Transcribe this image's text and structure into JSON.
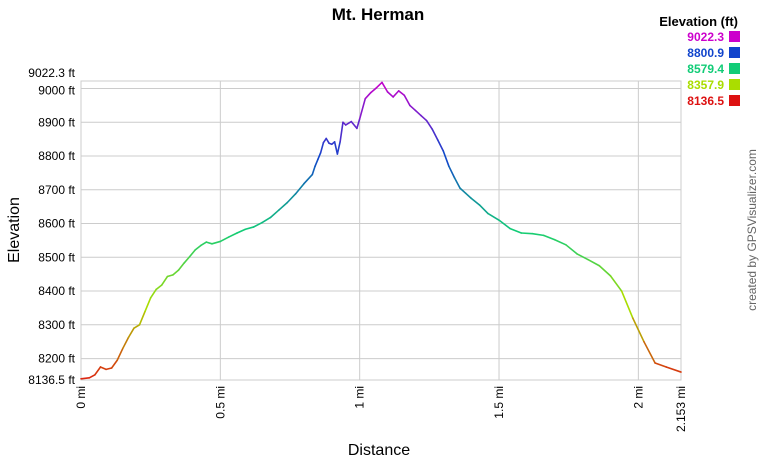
{
  "chart_data": {
    "type": "line",
    "title": "Mt. Herman",
    "xlabel": "Distance",
    "ylabel": "Elevation",
    "xlim": [
      0,
      2.153
    ],
    "ylim": [
      8136.5,
      9022.3
    ],
    "x_ticks": [
      {
        "value": 0,
        "label": "0 mi"
      },
      {
        "value": 0.5,
        "label": "0.5 mi"
      },
      {
        "value": 1,
        "label": "1 mi"
      },
      {
        "value": 1.5,
        "label": "1.5 mi"
      },
      {
        "value": 2,
        "label": "2 mi"
      },
      {
        "value": 2.153,
        "label": "2.153 mi"
      }
    ],
    "y_ticks": [
      {
        "value": 8136.5,
        "label": "8136.5 ft"
      },
      {
        "value": 8200,
        "label": "8200 ft"
      },
      {
        "value": 8300,
        "label": "8300 ft"
      },
      {
        "value": 8400,
        "label": "8400 ft"
      },
      {
        "value": 8500,
        "label": "8500 ft"
      },
      {
        "value": 8600,
        "label": "8600 ft"
      },
      {
        "value": 8700,
        "label": "8700 ft"
      },
      {
        "value": 8800,
        "label": "8800 ft"
      },
      {
        "value": 8900,
        "label": "8900 ft"
      },
      {
        "value": 9000,
        "label": "9000 ft"
      },
      {
        "value": 9022.3,
        "label": "9022.3 ft"
      }
    ],
    "grid": true,
    "legend": {
      "title": "Elevation (ft)",
      "placement": "top-right",
      "entries": [
        {
          "label": "9022.3",
          "color": "#cc00cc"
        },
        {
          "label": "8800.9",
          "color": "#1144cc"
        },
        {
          "label": "8579.4",
          "color": "#11cc77"
        },
        {
          "label": "8357.9",
          "color": "#aadd00"
        },
        {
          "label": "8136.5",
          "color": "#dd1111"
        }
      ]
    },
    "credit": "created by GPSVisualizer.com",
    "series": [
      {
        "x": [
          0,
          0.03,
          0.05,
          0.07,
          0.09,
          0.11,
          0.13,
          0.15,
          0.17,
          0.19,
          0.21,
          0.23,
          0.25,
          0.27,
          0.29,
          0.31,
          0.33,
          0.35,
          0.37,
          0.39,
          0.41,
          0.43,
          0.45,
          0.47,
          0.5,
          0.53,
          0.56,
          0.59,
          0.62,
          0.65,
          0.68,
          0.71,
          0.74,
          0.77,
          0.8,
          0.83,
          0.84,
          0.85,
          0.86,
          0.87,
          0.88,
          0.89,
          0.9,
          0.91,
          0.92,
          0.93,
          0.94,
          0.95,
          0.97,
          0.99,
          1.0,
          1.02,
          1.04,
          1.06,
          1.08,
          1.1,
          1.12,
          1.14,
          1.16,
          1.18,
          1.2,
          1.22,
          1.24,
          1.26,
          1.28,
          1.3,
          1.32,
          1.34,
          1.36,
          1.38,
          1.4,
          1.43,
          1.46,
          1.5,
          1.54,
          1.58,
          1.62,
          1.66,
          1.7,
          1.74,
          1.78,
          1.82,
          1.86,
          1.9,
          1.94,
          1.98,
          2.02,
          2.06,
          2.1,
          2.153
        ],
        "y": [
          8140,
          8143,
          8152,
          8175,
          8168,
          8172,
          8195,
          8230,
          8262,
          8290,
          8300,
          8340,
          8380,
          8405,
          8418,
          8443,
          8448,
          8462,
          8483,
          8502,
          8522,
          8535,
          8545,
          8540,
          8547,
          8560,
          8572,
          8583,
          8590,
          8603,
          8618,
          8640,
          8662,
          8688,
          8718,
          8745,
          8770,
          8790,
          8810,
          8840,
          8852,
          8838,
          8835,
          8842,
          8806,
          8843,
          8900,
          8892,
          8902,
          8882,
          8910,
          8970,
          8988,
          9002,
          9018,
          8990,
          8975,
          8993,
          8980,
          8950,
          8935,
          8920,
          8905,
          8880,
          8848,
          8815,
          8770,
          8736,
          8705,
          8690,
          8675,
          8655,
          8630,
          8610,
          8585,
          8572,
          8570,
          8565,
          8552,
          8537,
          8510,
          8493,
          8475,
          8445,
          8400,
          8320,
          8250,
          8187,
          8175,
          8160
        ]
      }
    ]
  }
}
